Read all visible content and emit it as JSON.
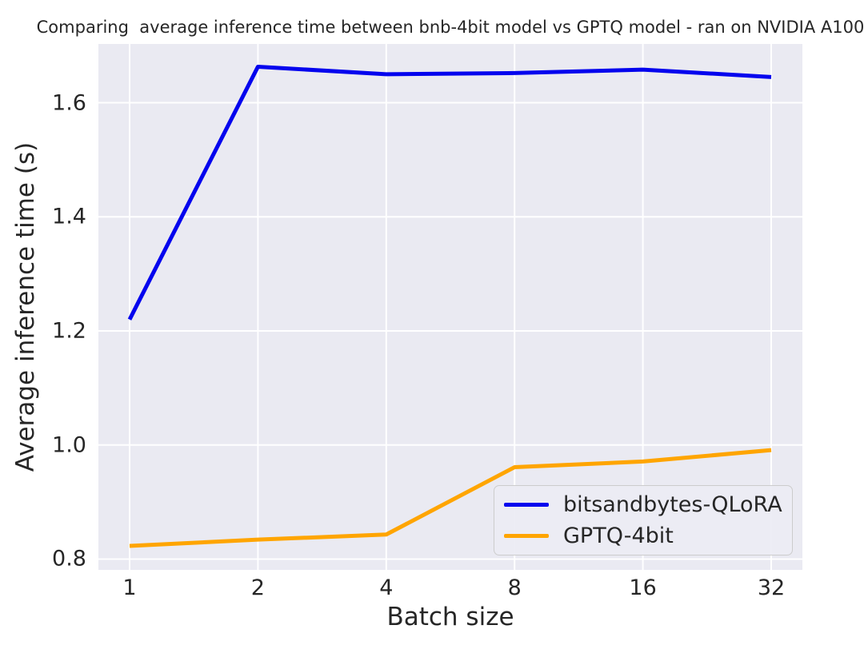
{
  "chart_data": {
    "type": "line",
    "title": "Comparing  average inference time between bnb-4bit model vs GPTQ model - ran on NVIDIA A100",
    "xlabel": "Batch size",
    "ylabel": "Average inference time (s)",
    "categories": [
      "1",
      "2",
      "4",
      "8",
      "16",
      "32"
    ],
    "series": [
      {
        "name": "bitsandbytes-QLoRA",
        "color": "#0404ee",
        "values": [
          1.22,
          1.663,
          1.65,
          1.652,
          1.658,
          1.645
        ]
      },
      {
        "name": "GPTQ-4bit",
        "color": "#ffa500",
        "values": [
          0.823,
          0.834,
          0.843,
          0.961,
          0.971,
          0.991
        ]
      }
    ],
    "yticks": [
      0.8,
      1.0,
      1.2,
      1.4,
      1.6
    ],
    "ylim": [
      0.781,
      1.703
    ],
    "grid": "on",
    "legend_position": "lower right",
    "colors": {
      "axes_background": "#eaeaf2",
      "gridline": "#ffffff",
      "text": "#262626",
      "figure_background": "#ffffff"
    }
  }
}
